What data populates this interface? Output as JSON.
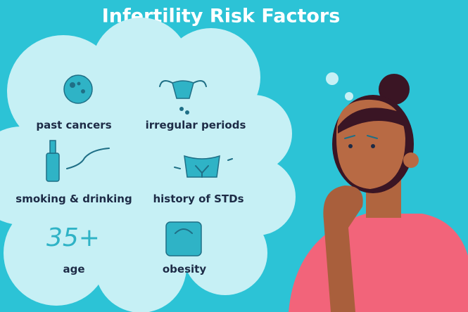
{
  "header": {
    "title": "Infertility Risk Factors"
  },
  "factors": [
    {
      "label": "past cancers"
    },
    {
      "label": "irregular periods"
    },
    {
      "label": "smoking & drinking"
    },
    {
      "label": "history of STDs"
    },
    {
      "label": "age",
      "icon_text": "35+"
    },
    {
      "label": "obesity"
    }
  ]
}
